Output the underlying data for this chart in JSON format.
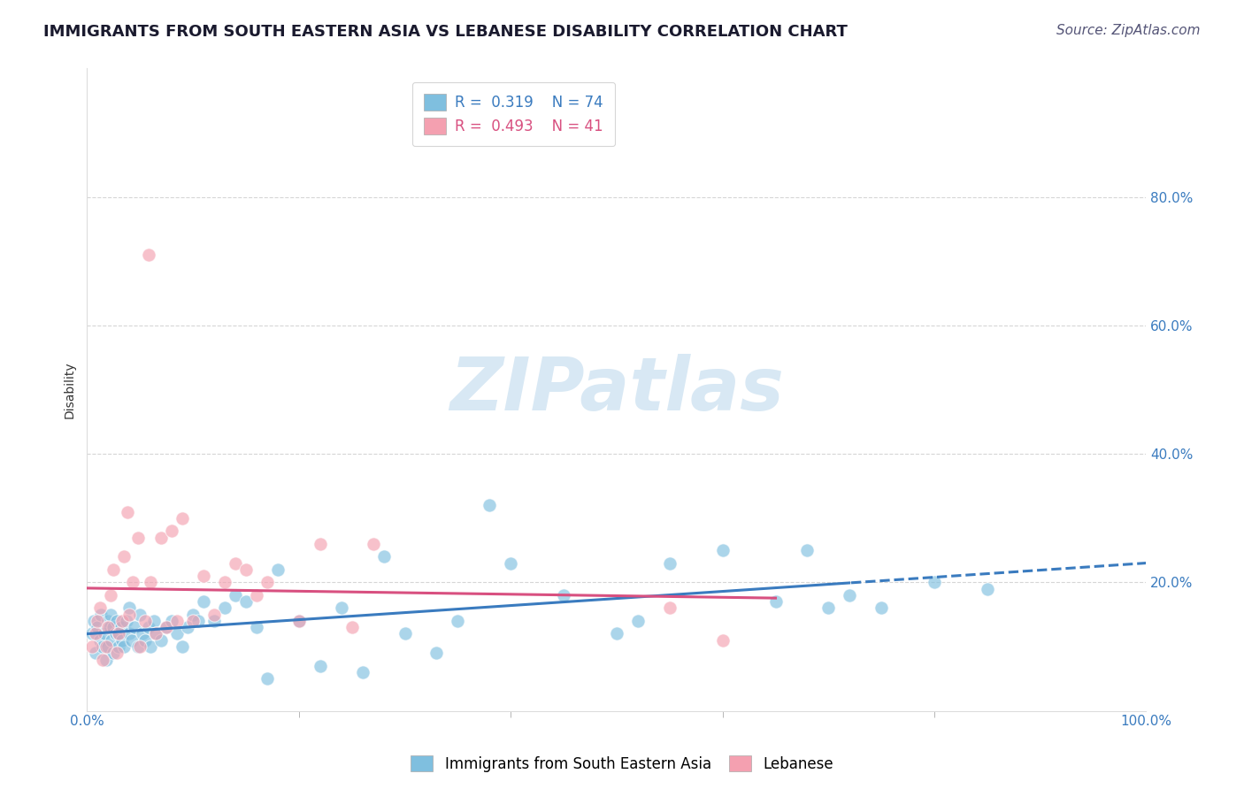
{
  "title": "IMMIGRANTS FROM SOUTH EASTERN ASIA VS LEBANESE DISABILITY CORRELATION CHART",
  "source": "Source: ZipAtlas.com",
  "ylabel": "Disability",
  "r_blue": 0.319,
  "n_blue": 74,
  "r_pink": 0.493,
  "n_pink": 41,
  "blue_color": "#7fbfdf",
  "pink_color": "#f4a0b0",
  "blue_line_color": "#3a7bbf",
  "pink_line_color": "#d85080",
  "watermark_text": "ZIPatlas",
  "xlim": [
    0.0,
    100.0
  ],
  "ylim": [
    0.0,
    100.0
  ],
  "ytick_positions": [
    0,
    20,
    40,
    60,
    80
  ],
  "ytick_labels": [
    "",
    "20.0%",
    "40.0%",
    "60.0%",
    "80.0%"
  ],
  "xtick_positions": [
    0,
    100
  ],
  "xtick_labels": [
    "0.0%",
    "100.0%"
  ],
  "blue_scatter_x": [
    0.5,
    0.6,
    0.8,
    1.0,
    1.2,
    1.3,
    1.5,
    1.6,
    1.8,
    2.0,
    2.0,
    2.1,
    2.2,
    2.3,
    2.5,
    2.5,
    2.7,
    2.8,
    3.0,
    3.0,
    3.2,
    3.3,
    3.5,
    3.7,
    4.0,
    4.0,
    4.2,
    4.5,
    4.8,
    5.0,
    5.2,
    5.5,
    5.8,
    6.0,
    6.3,
    6.5,
    7.0,
    7.5,
    8.0,
    8.5,
    9.0,
    9.5,
    10.0,
    10.5,
    11.0,
    12.0,
    13.0,
    14.0,
    15.0,
    16.0,
    17.0,
    18.0,
    20.0,
    22.0,
    24.0,
    26.0,
    28.0,
    30.0,
    33.0,
    35.0,
    38.0,
    40.0,
    45.0,
    50.0,
    52.0,
    55.0,
    60.0,
    65.0,
    68.0,
    70.0,
    72.0,
    75.0,
    80.0,
    85.0
  ],
  "blue_scatter_y": [
    12.0,
    14.0,
    9.0,
    13.0,
    11.0,
    15.0,
    10.0,
    12.0,
    8.0,
    14.0,
    10.0,
    13.0,
    15.0,
    11.0,
    9.0,
    13.0,
    12.0,
    14.0,
    10.0,
    12.0,
    13.0,
    11.0,
    10.0,
    14.0,
    12.0,
    16.0,
    11.0,
    13.0,
    10.0,
    15.0,
    12.0,
    11.0,
    13.0,
    10.0,
    14.0,
    12.0,
    11.0,
    13.0,
    14.0,
    12.0,
    10.0,
    13.0,
    15.0,
    14.0,
    17.0,
    14.0,
    16.0,
    18.0,
    17.0,
    13.0,
    5.0,
    22.0,
    14.0,
    7.0,
    16.0,
    6.0,
    24.0,
    12.0,
    9.0,
    14.0,
    32.0,
    23.0,
    18.0,
    12.0,
    14.0,
    23.0,
    25.0,
    17.0,
    25.0,
    16.0,
    18.0,
    16.0,
    20.0,
    19.0
  ],
  "pink_scatter_x": [
    0.5,
    0.8,
    1.0,
    1.2,
    1.5,
    1.8,
    2.0,
    2.2,
    2.5,
    2.8,
    3.0,
    3.3,
    3.5,
    4.0,
    4.3,
    4.8,
    5.0,
    5.5,
    6.0,
    6.5,
    7.0,
    7.5,
    8.0,
    8.5,
    9.0,
    10.0,
    11.0,
    12.0,
    13.0,
    14.0,
    15.0,
    16.0,
    17.0,
    20.0,
    22.0,
    25.0,
    27.0,
    55.0,
    60.0,
    3.8,
    5.8
  ],
  "pink_scatter_y": [
    10.0,
    12.0,
    14.0,
    16.0,
    8.0,
    10.0,
    13.0,
    18.0,
    22.0,
    9.0,
    12.0,
    14.0,
    24.0,
    15.0,
    20.0,
    27.0,
    10.0,
    14.0,
    20.0,
    12.0,
    27.0,
    13.0,
    28.0,
    14.0,
    30.0,
    14.0,
    21.0,
    15.0,
    20.0,
    23.0,
    22.0,
    18.0,
    20.0,
    14.0,
    26.0,
    13.0,
    26.0,
    16.0,
    11.0,
    31.0,
    71.0
  ],
  "background_color": "#ffffff",
  "grid_color": "#cccccc",
  "title_fontsize": 13,
  "axis_label_fontsize": 10,
  "tick_fontsize": 11,
  "legend_fontsize": 12,
  "watermark_fontsize": 60,
  "watermark_color": "#d8e8f4",
  "source_fontsize": 11,
  "blue_line_x_end": 100.0,
  "blue_solid_end": 72.0,
  "pink_line_x_end": 65.0
}
